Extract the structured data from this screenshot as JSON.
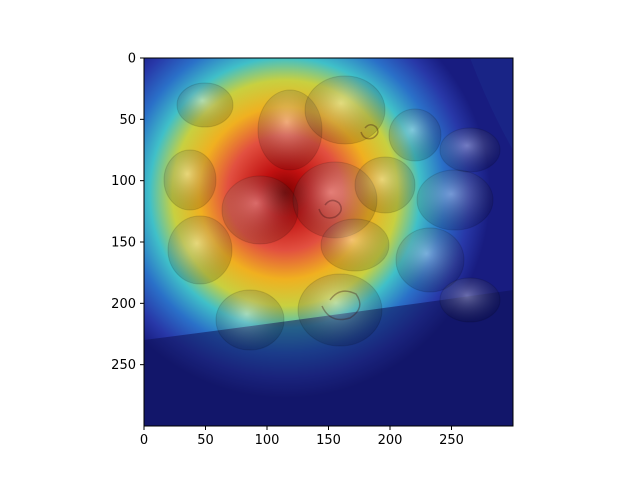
{
  "chart_data": {
    "type": "heatmap",
    "title": "",
    "xlabel": "",
    "ylabel": "",
    "xlim": [
      0,
      300
    ],
    "ylim": [
      300,
      0
    ],
    "x_ticks": [
      0,
      50,
      100,
      150,
      200,
      250
    ],
    "y_ticks": [
      0,
      50,
      100,
      150,
      200,
      250
    ],
    "x_tick_labels": [
      "0",
      "50",
      "100",
      "150",
      "200",
      "250"
    ],
    "y_tick_labels": [
      "0",
      "50",
      "100",
      "150",
      "200",
      "250"
    ],
    "colormap": "jet",
    "hotspot_center": [
      115,
      110
    ],
    "colors": {
      "background": "#ffffff",
      "axis": "#000000",
      "cold": "#1a1a8c",
      "hot": "#b40000"
    }
  }
}
